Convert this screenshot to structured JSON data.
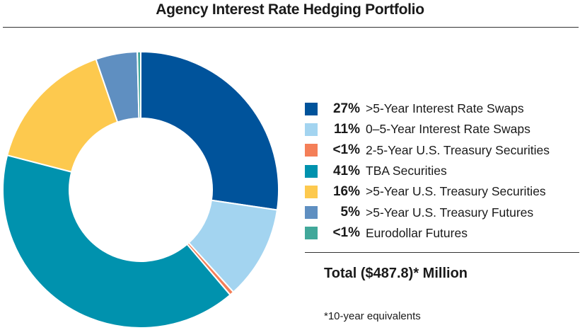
{
  "chart_data": {
    "type": "pie",
    "title": "Agency Interest Rate Hedging Portfolio",
    "donut": true,
    "legend_position": "right",
    "slices": [
      {
        "label": ">5-Year Interest Rate Swaps",
        "display": "27%",
        "value": 27.5,
        "color": "#00539b"
      },
      {
        "label": "0–5-Year Interest Rate Swaps",
        "display": "11%",
        "value": 11.0,
        "color": "#a3d4f0"
      },
      {
        "label": "2-5-Year U.S. Treasury Securities",
        "display": "<1%",
        "value": 0.5,
        "color": "#f47f58"
      },
      {
        "label": "TBA Securities",
        "display": "41%",
        "value": 40.5,
        "color": "#0092ae"
      },
      {
        "label": ">5-Year U.S. Treasury Securities",
        "display": "16%",
        "value": 15.8,
        "color": "#fdc94e"
      },
      {
        "label": ">5-Year U.S. Treasury Futures",
        "display": "5%",
        "value": 4.9,
        "color": "#5f8fc1"
      },
      {
        "label": "Eurodollar Futures",
        "display": "<1%",
        "value": 0.4,
        "color": "#41a89a"
      }
    ],
    "total": "Total ($487.8)* Million",
    "footnote": "*10-year equivalents"
  }
}
